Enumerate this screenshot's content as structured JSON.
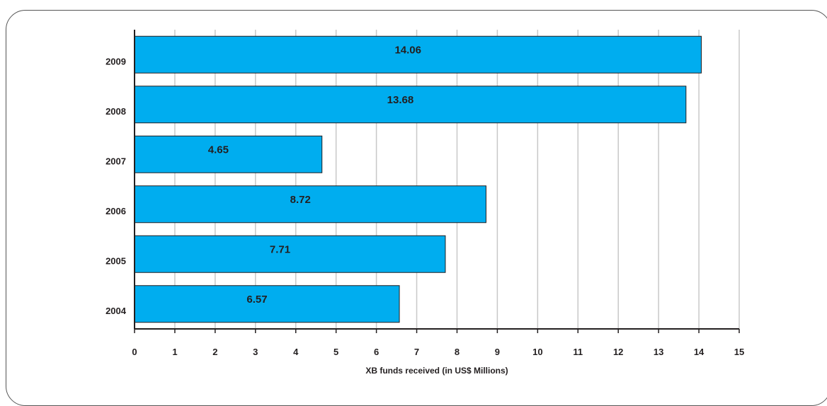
{
  "chart_data": {
    "type": "bar",
    "orientation": "horizontal",
    "categories": [
      "2004",
      "2005",
      "2006",
      "2007",
      "2008",
      "2009"
    ],
    "values": [
      6.57,
      7.71,
      8.72,
      4.65,
      13.68,
      14.06
    ],
    "data_labels": [
      "6.57",
      "7.71",
      "8.72",
      "4.65",
      "13.68",
      "14.06"
    ],
    "xlabel": "XB funds received (in US$ Millions)",
    "ylabel": "",
    "xlim": [
      0,
      15
    ],
    "x_ticks": [
      "0",
      "1",
      "2",
      "3",
      "4",
      "5",
      "6",
      "7",
      "8",
      "9",
      "10",
      "11",
      "12",
      "13",
      "14",
      "15"
    ],
    "grid": "vertical",
    "bar_color": "#00adef"
  }
}
